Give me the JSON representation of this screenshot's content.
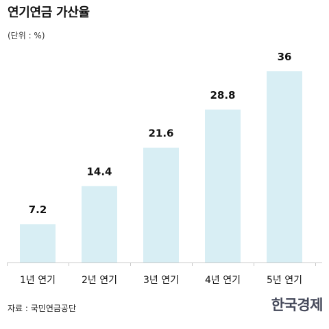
{
  "header": {
    "title": "연기연금 가산율",
    "unit": "(단위 : %)"
  },
  "footer": {
    "source": "자료 : 국민연금공단",
    "brand": "한국경제"
  },
  "colors": {
    "bar_fill": "#d8eef4",
    "axis": "#c8c8c8",
    "text": "#111111"
  },
  "chart_data": {
    "type": "bar",
    "categories": [
      "1년 연기",
      "2년 연기",
      "3년 연기",
      "4년 연기",
      "5년 연기"
    ],
    "values": [
      7.2,
      14.4,
      21.6,
      28.8,
      36
    ],
    "value_labels": [
      "7.2",
      "14.4",
      "21.6",
      "28.8",
      "36"
    ],
    "title": "연기연금 가산율",
    "ylabel": "(단위 : %)",
    "ylim": [
      0,
      36
    ],
    "grid": false,
    "legend": "none"
  }
}
